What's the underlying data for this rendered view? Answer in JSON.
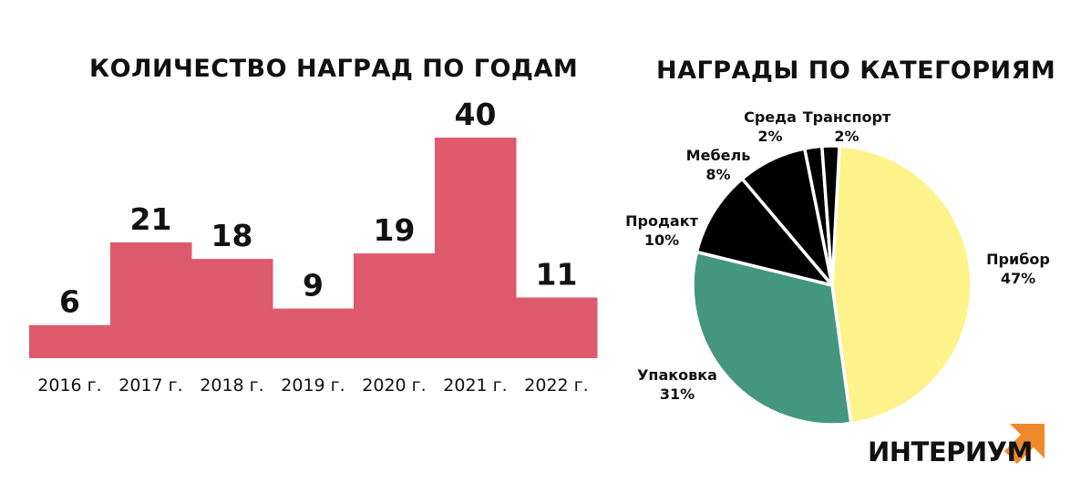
{
  "chart_data": [
    {
      "type": "bar",
      "title": "КОЛИЧЕСТВО НАГРАД ПО ГОДАМ",
      "categories": [
        "2016 г.",
        "2017 г.",
        "2018 г.",
        "2019 г.",
        "2020 г.",
        "2021 г.",
        "2022 г."
      ],
      "values": [
        6,
        21,
        18,
        9,
        19,
        40,
        11
      ],
      "color": "#dd5b6c",
      "grid": false
    },
    {
      "type": "pie",
      "title": "НАГРАДЫ ПО КАТЕГОРИЯМ",
      "slices": [
        {
          "label": "Прибор",
          "percent": "47%",
          "value": 47,
          "color": "#fdf38a"
        },
        {
          "label": "Упаковка",
          "percent": "31%",
          "value": 31,
          "color": "#45967f"
        },
        {
          "label": "Продакт",
          "percent": "10%",
          "value": 10,
          "color": "#000000"
        },
        {
          "label": "Мебель",
          "percent": "8%",
          "value": 8,
          "color": "#000000"
        },
        {
          "label": "Среда",
          "percent": "2%",
          "value": 2,
          "color": "#000000"
        },
        {
          "label": "Транспорт",
          "percent": "2%",
          "value": 2,
          "color": "#000000"
        }
      ]
    }
  ],
  "logo": {
    "text": "ИНТЕРИУМ",
    "accent_color": "#ef8a2c"
  }
}
